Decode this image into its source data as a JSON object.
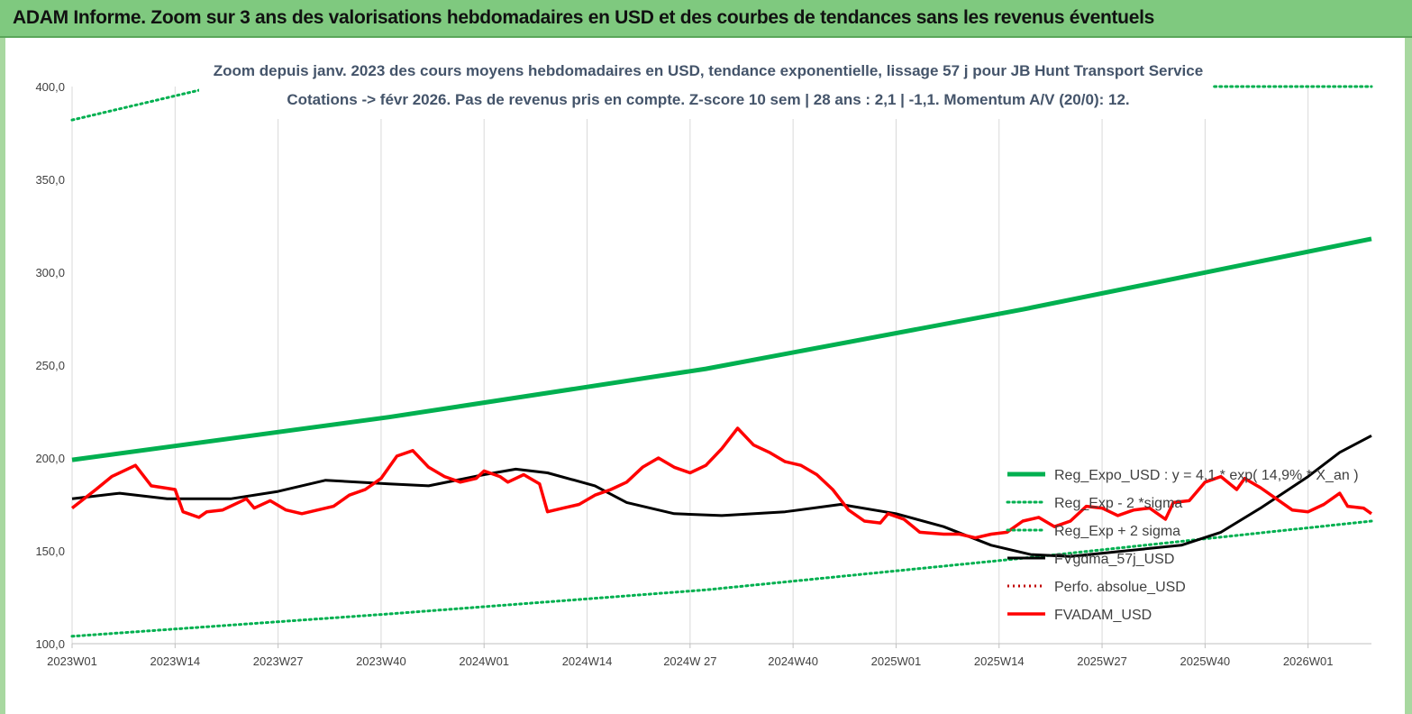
{
  "banner": {
    "title": "ADAM Informe. Zoom sur 3 ans des valorisations hebdomadaires en USD et des courbes de tendances sans les revenus éventuels"
  },
  "colors": {
    "banner_bg": "#7fc97f",
    "frame": "#a8d8a0",
    "reg_expo": "#00b050",
    "sigma": "#00b050",
    "fvadam": "#ff0000",
    "fvgdma": "#000000",
    "perfo": "#c00000"
  },
  "chart_data": {
    "type": "line",
    "title": "Zoom depuis janv. 2023 des cours moyens hebdomadaires en USD, tendance exponentielle, lissage 57 j pour JB Hunt Transport Service",
    "subtitle": "Cotations -> févr 2026.  Pas de revenus pris en compte. Z-score 10 sem | 28 ans : 2,1 | -1,1. Momentum A/V (20/0): 12.",
    "x_range": [
      0,
      164
    ],
    "x_ticks": [
      {
        "i": 0,
        "label": "2023W01"
      },
      {
        "i": 13,
        "label": "2023W14"
      },
      {
        "i": 26,
        "label": "2023W27"
      },
      {
        "i": 39,
        "label": "2023W40"
      },
      {
        "i": 52,
        "label": "2024W01"
      },
      {
        "i": 65,
        "label": "2024W14"
      },
      {
        "i": 78,
        "label": "2024W 27"
      },
      {
        "i": 91,
        "label": "2024W40"
      },
      {
        "i": 104,
        "label": "2025W01"
      },
      {
        "i": 117,
        "label": "2025W14"
      },
      {
        "i": 130,
        "label": "2025W27"
      },
      {
        "i": 143,
        "label": "2025W40"
      },
      {
        "i": 156,
        "label": "2026W01"
      }
    ],
    "ylim": [
      100,
      400
    ],
    "y_ticks": [
      "100,0",
      "150,0",
      "200,0",
      "250,0",
      "300,0",
      "350,0",
      "400,0"
    ],
    "y_tick_values": [
      100,
      150,
      200,
      250,
      300,
      350,
      400
    ],
    "grid": "vertical",
    "legend_position": "right",
    "series": [
      {
        "name": "Reg_Expo_USD : y = 4,1 * exp( 14,9% *  X_an )",
        "style": "thick",
        "points": [
          [
            0,
            199
          ],
          [
            40,
            222
          ],
          [
            80,
            248
          ],
          [
            120,
            280
          ],
          [
            164,
            318
          ]
        ]
      },
      {
        "name": "Reg_Exp - 2 *sigma",
        "style": "dotted",
        "points": [
          [
            0,
            104
          ],
          [
            40,
            116
          ],
          [
            80,
            129
          ],
          [
            120,
            146
          ],
          [
            164,
            166
          ]
        ]
      },
      {
        "name": "Reg_Exp + 2 sigma",
        "style": "dotted",
        "points": [
          [
            0,
            382
          ],
          [
            18,
            400
          ],
          [
            146,
            400
          ],
          [
            164,
            400
          ]
        ]
      },
      {
        "name": "FVgdma_57j_USD",
        "style": "black",
        "points": [
          [
            0,
            178
          ],
          [
            6,
            181
          ],
          [
            12,
            178
          ],
          [
            20,
            178
          ],
          [
            26,
            182
          ],
          [
            32,
            188
          ],
          [
            40,
            186
          ],
          [
            45,
            185
          ],
          [
            52,
            191
          ],
          [
            56,
            194
          ],
          [
            60,
            192
          ],
          [
            66,
            185
          ],
          [
            70,
            176
          ],
          [
            76,
            170
          ],
          [
            82,
            169
          ],
          [
            90,
            171
          ],
          [
            97,
            175
          ],
          [
            104,
            170
          ],
          [
            110,
            163
          ],
          [
            116,
            153
          ],
          [
            121,
            148
          ],
          [
            126,
            147
          ],
          [
            133,
            150
          ],
          [
            140,
            153
          ],
          [
            145,
            160
          ],
          [
            150,
            173
          ],
          [
            156,
            190
          ],
          [
            160,
            203
          ],
          [
            164,
            212
          ]
        ]
      },
      {
        "name": "Perfo. absolue_USD",
        "style": "perfo",
        "points": []
      },
      {
        "name": "FVADAM_USD",
        "style": "red",
        "points": [
          [
            0,
            173
          ],
          [
            3,
            183
          ],
          [
            5,
            190
          ],
          [
            8,
            196
          ],
          [
            10,
            185
          ],
          [
            13,
            183
          ],
          [
            14,
            171
          ],
          [
            16,
            168
          ],
          [
            17,
            171
          ],
          [
            19,
            172
          ],
          [
            22,
            178
          ],
          [
            23,
            173
          ],
          [
            25,
            177
          ],
          [
            27,
            172
          ],
          [
            29,
            170
          ],
          [
            31,
            172
          ],
          [
            33,
            174
          ],
          [
            35,
            180
          ],
          [
            37,
            183
          ],
          [
            39,
            189
          ],
          [
            41,
            201
          ],
          [
            43,
            204
          ],
          [
            45,
            195
          ],
          [
            47,
            190
          ],
          [
            49,
            187
          ],
          [
            51,
            189
          ],
          [
            52,
            193
          ],
          [
            54,
            190
          ],
          [
            55,
            187
          ],
          [
            57,
            191
          ],
          [
            59,
            186
          ],
          [
            60,
            171
          ],
          [
            62,
            173
          ],
          [
            64,
            175
          ],
          [
            66,
            180
          ],
          [
            68,
            183
          ],
          [
            70,
            187
          ],
          [
            72,
            195
          ],
          [
            74,
            200
          ],
          [
            76,
            195
          ],
          [
            78,
            192
          ],
          [
            80,
            196
          ],
          [
            82,
            205
          ],
          [
            84,
            216
          ],
          [
            86,
            207
          ],
          [
            88,
            203
          ],
          [
            90,
            198
          ],
          [
            92,
            196
          ],
          [
            94,
            191
          ],
          [
            96,
            183
          ],
          [
            98,
            172
          ],
          [
            100,
            166
          ],
          [
            102,
            165
          ],
          [
            103,
            170
          ],
          [
            105,
            167
          ],
          [
            107,
            160
          ],
          [
            110,
            159
          ],
          [
            112,
            159
          ],
          [
            114,
            157
          ],
          [
            116,
            159
          ],
          [
            118,
            160
          ],
          [
            120,
            166
          ],
          [
            122,
            168
          ],
          [
            124,
            163
          ],
          [
            126,
            166
          ],
          [
            128,
            174
          ],
          [
            130,
            173
          ],
          [
            132,
            169
          ],
          [
            134,
            172
          ],
          [
            136,
            173
          ],
          [
            138,
            167
          ],
          [
            139,
            176
          ],
          [
            141,
            177
          ],
          [
            143,
            187
          ],
          [
            145,
            190
          ],
          [
            147,
            183
          ],
          [
            148,
            189
          ],
          [
            150,
            184
          ],
          [
            152,
            178
          ],
          [
            154,
            172
          ],
          [
            156,
            171
          ],
          [
            158,
            175
          ],
          [
            160,
            181
          ],
          [
            161,
            174
          ],
          [
            163,
            173
          ],
          [
            164,
            170
          ]
        ]
      }
    ]
  },
  "legend_items": [
    "Reg_Expo_USD : y = 4,1 * exp( 14,9% *  X_an )",
    "Reg_Exp - 2 *sigma",
    "Reg_Exp + 2 sigma",
    "FVgdma_57j_USD",
    "Perfo. absolue_USD",
    "FVADAM_USD"
  ]
}
